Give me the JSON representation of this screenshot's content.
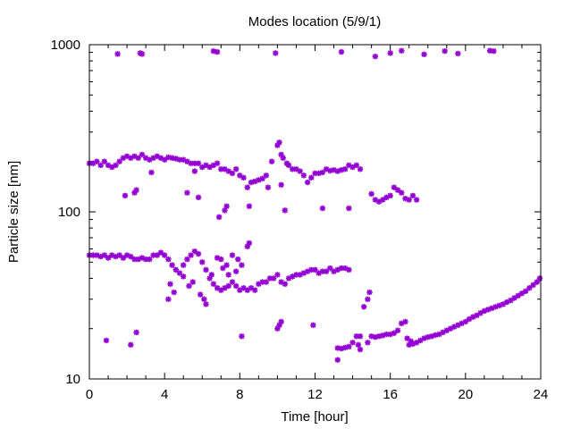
{
  "chart_data": {
    "type": "scatter",
    "title": "Modes location (5/9/1)",
    "xlabel": "Time [hour]",
    "ylabel": "Particle size [nm]",
    "xlim": [
      0,
      24
    ],
    "ylim": [
      10,
      1000
    ],
    "yscale": "log",
    "xticks": [
      0,
      4,
      8,
      12,
      16,
      20,
      24
    ],
    "xtick_labels": [
      "0",
      "4",
      "8",
      "12",
      "16",
      "20",
      "24"
    ],
    "yticks": [
      10,
      100,
      1000
    ],
    "ytick_labels": [
      "10",
      "100",
      "1000"
    ],
    "grid": false,
    "legend": "none",
    "marker_color": "#9400d3",
    "series": [
      {
        "points": [
          [
            1.5,
            880
          ],
          [
            2.7,
            890
          ],
          [
            2.8,
            880
          ],
          [
            6.6,
            915
          ],
          [
            6.8,
            905
          ],
          [
            9.9,
            890
          ],
          [
            13.4,
            905
          ],
          [
            15.2,
            850
          ],
          [
            16.0,
            890
          ],
          [
            16.6,
            920
          ],
          [
            17.8,
            875
          ],
          [
            18.9,
            915
          ],
          [
            19.6,
            885
          ],
          [
            21.3,
            920
          ],
          [
            21.5,
            915
          ],
          [
            0.0,
            195
          ],
          [
            0.2,
            195
          ],
          [
            0.4,
            200
          ],
          [
            0.6,
            190
          ],
          [
            0.8,
            200
          ],
          [
            1.0,
            190
          ],
          [
            1.2,
            185
          ],
          [
            1.4,
            190
          ],
          [
            1.6,
            200
          ],
          [
            1.8,
            210
          ],
          [
            2.0,
            215
          ],
          [
            2.2,
            210
          ],
          [
            2.4,
            215
          ],
          [
            2.6,
            210
          ],
          [
            2.8,
            220
          ],
          [
            3.0,
            210
          ],
          [
            3.2,
            205
          ],
          [
            3.4,
            210
          ],
          [
            3.6,
            215
          ],
          [
            3.8,
            210
          ],
          [
            4.0,
            205
          ],
          [
            4.2,
            212
          ],
          [
            4.4,
            210
          ],
          [
            4.6,
            208
          ],
          [
            4.8,
            205
          ],
          [
            5.0,
            205
          ],
          [
            5.2,
            200
          ],
          [
            5.4,
            195
          ],
          [
            5.6,
            195
          ],
          [
            5.8,
            195
          ],
          [
            6.0,
            185
          ],
          [
            6.2,
            190
          ],
          [
            6.4,
            185
          ],
          [
            6.6,
            190
          ],
          [
            6.8,
            195
          ],
          [
            7.0,
            180
          ],
          [
            7.2,
            180
          ],
          [
            7.4,
            175
          ],
          [
            7.6,
            170
          ],
          [
            7.8,
            180
          ],
          [
            8.0,
            165
          ],
          [
            8.2,
            160
          ],
          [
            8.4,
            140
          ],
          [
            8.6,
            150
          ],
          [
            8.8,
            152
          ],
          [
            9.0,
            155
          ],
          [
            9.2,
            158
          ],
          [
            9.4,
            165
          ],
          [
            10.0,
            250
          ],
          [
            10.1,
            260
          ],
          [
            10.2,
            220
          ],
          [
            10.3,
            210
          ],
          [
            10.5,
            195
          ],
          [
            10.6,
            190
          ],
          [
            10.8,
            180
          ],
          [
            11.0,
            180
          ],
          [
            11.2,
            175
          ],
          [
            11.4,
            165
          ],
          [
            11.6,
            150
          ],
          [
            11.8,
            160
          ],
          [
            12.0,
            170
          ],
          [
            12.2,
            170
          ],
          [
            12.4,
            172
          ],
          [
            12.6,
            180
          ],
          [
            12.8,
            176
          ],
          [
            13.0,
            178
          ],
          [
            13.2,
            175
          ],
          [
            13.4,
            178
          ],
          [
            13.6,
            180
          ],
          [
            13.8,
            190
          ],
          [
            14.0,
            185
          ],
          [
            14.2,
            190
          ],
          [
            14.4,
            180
          ],
          [
            5.6,
            175
          ],
          [
            3.3,
            172
          ],
          [
            9.7,
            200
          ],
          [
            2.4,
            130
          ],
          [
            2.5,
            135
          ],
          [
            1.9,
            125
          ],
          [
            5.2,
            130
          ],
          [
            5.8,
            122
          ],
          [
            7.3,
            108
          ],
          [
            6.9,
            93
          ],
          [
            7.2,
            102
          ],
          [
            8.5,
            108
          ],
          [
            9.5,
            140
          ],
          [
            10.4,
            102
          ],
          [
            12.4,
            105
          ],
          [
            13.8,
            105
          ],
          [
            10.2,
            145
          ],
          [
            15.0,
            128
          ],
          [
            15.2,
            118
          ],
          [
            15.4,
            115
          ],
          [
            15.6,
            118
          ],
          [
            15.8,
            122
          ],
          [
            16.0,
            125
          ],
          [
            16.2,
            140
          ],
          [
            16.4,
            135
          ],
          [
            16.6,
            130
          ],
          [
            16.8,
            120
          ],
          [
            17.0,
            118
          ],
          [
            17.2,
            125
          ],
          [
            17.4,
            118
          ],
          [
            0.0,
            55
          ],
          [
            0.2,
            55
          ],
          [
            0.4,
            55
          ],
          [
            0.6,
            54
          ],
          [
            0.8,
            55
          ],
          [
            1.0,
            53
          ],
          [
            1.2,
            55
          ],
          [
            1.4,
            54
          ],
          [
            1.6,
            55
          ],
          [
            1.8,
            53
          ],
          [
            2.0,
            55
          ],
          [
            2.2,
            54
          ],
          [
            2.4,
            52
          ],
          [
            2.6,
            52
          ],
          [
            2.8,
            53
          ],
          [
            3.0,
            52
          ],
          [
            3.2,
            52
          ],
          [
            3.4,
            55
          ],
          [
            3.6,
            55
          ],
          [
            3.8,
            57
          ],
          [
            4.0,
            55
          ],
          [
            4.2,
            52
          ],
          [
            4.4,
            48
          ],
          [
            4.6,
            45
          ],
          [
            4.8,
            43
          ],
          [
            5.0,
            48
          ],
          [
            5.2,
            52
          ],
          [
            5.4,
            55
          ],
          [
            5.6,
            58
          ],
          [
            5.8,
            56
          ],
          [
            6.0,
            50
          ],
          [
            6.2,
            45
          ],
          [
            6.4,
            40
          ],
          [
            6.6,
            37
          ],
          [
            6.8,
            35
          ],
          [
            7.0,
            34
          ],
          [
            7.2,
            35
          ],
          [
            7.4,
            36
          ],
          [
            7.6,
            38
          ],
          [
            7.8,
            36
          ],
          [
            8.0,
            34
          ],
          [
            8.2,
            35
          ],
          [
            8.4,
            34
          ],
          [
            8.6,
            35
          ],
          [
            8.8,
            34
          ],
          [
            9.0,
            37
          ],
          [
            9.2,
            38
          ],
          [
            9.4,
            38
          ],
          [
            9.6,
            40
          ],
          [
            9.8,
            40
          ],
          [
            10.0,
            42
          ],
          [
            10.2,
            38
          ],
          [
            10.4,
            37
          ],
          [
            10.6,
            40
          ],
          [
            10.8,
            41
          ],
          [
            11.0,
            42
          ],
          [
            11.2,
            42
          ],
          [
            11.4,
            43
          ],
          [
            11.6,
            44
          ],
          [
            11.8,
            45
          ],
          [
            12.0,
            45
          ],
          [
            12.2,
            43
          ],
          [
            12.4,
            44
          ],
          [
            12.6,
            44
          ],
          [
            12.8,
            46
          ],
          [
            13.0,
            44
          ],
          [
            13.2,
            45
          ],
          [
            13.4,
            46
          ],
          [
            13.6,
            46
          ],
          [
            13.8,
            45
          ],
          [
            4.3,
            37
          ],
          [
            4.5,
            33
          ],
          [
            4.2,
            30
          ],
          [
            5.3,
            36
          ],
          [
            5.5,
            38
          ],
          [
            5.9,
            32
          ],
          [
            6.1,
            30
          ],
          [
            6.5,
            42
          ],
          [
            6.8,
            53
          ],
          [
            7.0,
            52
          ],
          [
            7.3,
            48
          ],
          [
            7.6,
            55
          ],
          [
            7.9,
            52
          ],
          [
            8.1,
            48
          ],
          [
            8.4,
            62
          ],
          [
            8.5,
            65
          ],
          [
            7.1,
            46
          ],
          [
            7.8,
            44
          ],
          [
            7.4,
            42
          ],
          [
            6.2,
            28
          ],
          [
            5.0,
            41
          ],
          [
            0.9,
            17
          ],
          [
            2.2,
            16
          ],
          [
            2.5,
            19
          ],
          [
            8.1,
            18
          ],
          [
            10.0,
            20
          ],
          [
            10.1,
            21
          ],
          [
            10.2,
            22
          ],
          [
            11.9,
            21
          ],
          [
            13.2,
            13
          ],
          [
            14.3,
            16
          ],
          [
            14.4,
            15
          ],
          [
            14.6,
            27
          ],
          [
            14.8,
            30
          ],
          [
            14.9,
            33
          ],
          [
            13.2,
            15.3
          ],
          [
            13.4,
            15.2
          ],
          [
            13.6,
            15.4
          ],
          [
            13.8,
            15.6
          ],
          [
            14.0,
            16.5
          ],
          [
            14.2,
            18
          ],
          [
            14.4,
            18
          ],
          [
            14.8,
            16.5
          ],
          [
            15.0,
            18
          ],
          [
            15.2,
            17.8
          ],
          [
            15.4,
            18
          ],
          [
            15.6,
            18.2
          ],
          [
            15.8,
            18.5
          ],
          [
            16.0,
            18.5
          ],
          [
            16.2,
            18.8
          ],
          [
            16.4,
            19.5
          ],
          [
            16.6,
            21.5
          ],
          [
            16.8,
            22
          ],
          [
            17.0,
            16
          ],
          [
            17.2,
            16.2
          ],
          [
            17.4,
            16.5
          ],
          [
            17.6,
            17
          ],
          [
            17.8,
            17.5
          ],
          [
            18.0,
            17.8
          ],
          [
            18.2,
            18
          ],
          [
            18.4,
            18.3
          ],
          [
            18.6,
            18.5
          ],
          [
            18.8,
            19
          ],
          [
            19.0,
            19.5
          ],
          [
            19.2,
            20
          ],
          [
            19.4,
            20.5
          ],
          [
            19.6,
            21
          ],
          [
            19.8,
            21.5
          ],
          [
            20.0,
            22
          ],
          [
            20.2,
            22.8
          ],
          [
            20.4,
            23.5
          ],
          [
            20.6,
            24
          ],
          [
            20.8,
            24.8
          ],
          [
            21.0,
            25.5
          ],
          [
            21.2,
            26
          ],
          [
            21.4,
            26.5
          ],
          [
            21.6,
            27
          ],
          [
            21.8,
            27.5
          ],
          [
            22.0,
            28
          ],
          [
            22.2,
            28.8
          ],
          [
            22.4,
            29.5
          ],
          [
            22.6,
            30.5
          ],
          [
            22.8,
            31.5
          ],
          [
            23.0,
            32.5
          ],
          [
            23.2,
            33.5
          ],
          [
            23.4,
            35
          ],
          [
            23.6,
            36.5
          ],
          [
            23.8,
            38
          ],
          [
            23.95,
            40
          ],
          [
            16.9,
            17.5
          ],
          [
            17.1,
            16.8
          ]
        ]
      }
    ]
  }
}
